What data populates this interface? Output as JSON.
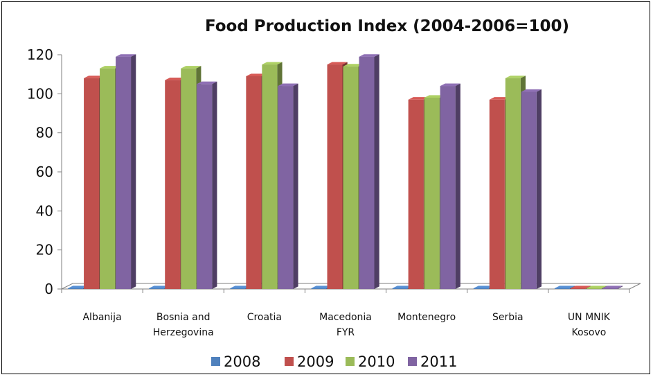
{
  "chart_data": {
    "type": "bar",
    "title": "Food Production Index (2004-2006=100)",
    "xlabel": "",
    "ylabel": "",
    "ylim": [
      0,
      120
    ],
    "yticks": [
      0,
      20,
      40,
      60,
      80,
      100,
      120
    ],
    "grid": false,
    "legend_position": "bottom",
    "three_d": true,
    "categories": [
      [
        "Albanija"
      ],
      [
        "Bosnia and",
        "Herzegovina"
      ],
      [
        "Croatia"
      ],
      [
        "Macedonia",
        "FYR"
      ],
      [
        "Montenegro"
      ],
      [
        "Serbia"
      ],
      [
        "UN MNIK",
        "Kosovo"
      ]
    ],
    "series": [
      {
        "name": "2008",
        "color": "#4F81BD",
        "values": [
          0,
          0,
          0,
          0,
          0,
          0,
          0
        ]
      },
      {
        "name": "2009",
        "color": "#C0504D",
        "values": [
          108,
          107,
          109,
          115,
          97,
          97,
          0
        ]
      },
      {
        "name": "2010",
        "color": "#9BBB59",
        "values": [
          113,
          113,
          115,
          114,
          98,
          108,
          0
        ]
      },
      {
        "name": "2011",
        "color": "#8064A2",
        "values": [
          119,
          105,
          104,
          119,
          104,
          101,
          0
        ]
      }
    ]
  }
}
